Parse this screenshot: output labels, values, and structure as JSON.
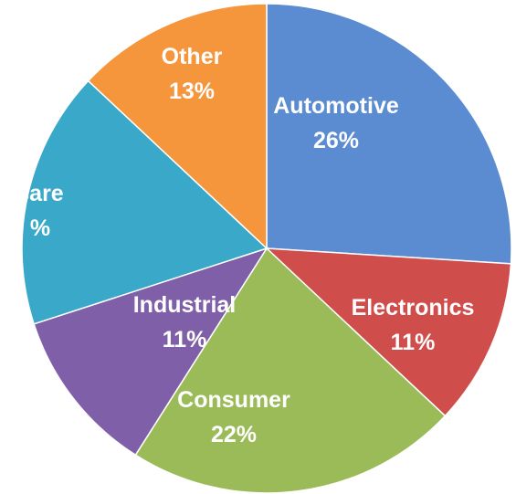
{
  "chart_data": {
    "type": "pie",
    "start_angle_deg": 0,
    "direction": "clockwise",
    "slices": [
      {
        "category": "Automotive",
        "value": 26,
        "label_line1": "Automotive",
        "label_line2": "26%",
        "color": "#5b8bd0"
      },
      {
        "category": "Electronics",
        "value": 11,
        "label_line1": "Electronics",
        "label_line2": "11%",
        "color": "#cf4e4c"
      },
      {
        "category": "Consumer",
        "value": 22,
        "label_line1": "Consumer",
        "label_line2": "22%",
        "color": "#9bbb59"
      },
      {
        "category": "Industrial",
        "value": 11,
        "label_line1": "Industrial",
        "label_line2": "11%",
        "color": "#7f5fa8"
      },
      {
        "category": "care",
        "value": 17,
        "label_line1": "care",
        "label_line2": "%",
        "color": "#3aa8c8"
      },
      {
        "category": "Other",
        "value": 13,
        "label_line1": "Other",
        "label_line2": "13%",
        "color": "#f5963c"
      }
    ]
  }
}
